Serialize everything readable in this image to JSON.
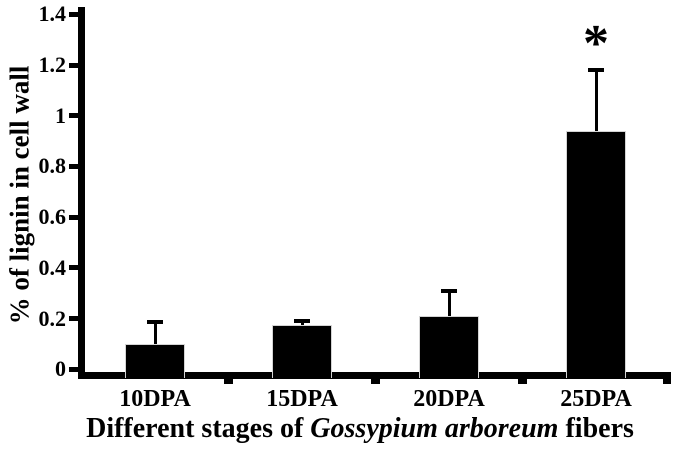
{
  "chart_data": {
    "type": "bar",
    "title": "",
    "categories": [
      "10DPA",
      "15DPA",
      "20DPA",
      "25DPA"
    ],
    "values": [
      0.1,
      0.175,
      0.21,
      0.94
    ],
    "errors_plus": [
      0.085,
      0.015,
      0.1,
      0.24
    ],
    "ylabel": "% of lignin in cell wall",
    "xlabel": "Different stages of Gossypium arboreum fibers",
    "xlabel_parts": {
      "prefix": "Different stages of ",
      "italic": "Gossypium arboreum",
      "suffix": " fibers"
    },
    "ylim": [
      0,
      1.4
    ],
    "yticks": [
      0,
      0.2,
      0.4,
      0.6,
      0.8,
      1,
      1.2,
      1.4
    ],
    "ytick_labels": [
      "0",
      "0.2",
      "0.4",
      "0.6",
      "0.8",
      "1",
      "1.2",
      "1.4"
    ],
    "grid": false,
    "legend": null,
    "bar_color": "#000000",
    "axis_color": "#000000",
    "background_color": "#ffffff",
    "significance": {
      "label": "*",
      "category": "25DPA",
      "category_index": 3
    }
  }
}
